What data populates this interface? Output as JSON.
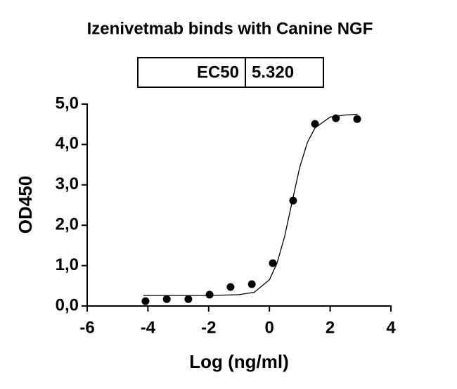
{
  "chart_data": {
    "type": "scatter",
    "title": "Izenivetmab binds with Canine NGF",
    "ec50_table": {
      "label": "EC50",
      "value": "5.320"
    },
    "x_label": "Log (ng/ml)",
    "y_label": "OD450",
    "x": [
      -4.08,
      -3.38,
      -2.67,
      -1.97,
      -1.28,
      -0.58,
      0.11,
      0.78,
      1.5,
      2.19,
      2.89
    ],
    "values": [
      0.12,
      0.17,
      0.17,
      0.28,
      0.47,
      0.54,
      1.06,
      2.61,
      4.51,
      4.65,
      4.63
    ],
    "color": "#000000",
    "curve": {
      "x": [
        -4.15,
        -3,
        -2,
        -1,
        -0.5,
        0,
        0.25,
        0.5,
        0.75,
        1,
        1.25,
        1.5,
        2,
        2.5,
        2.9
      ],
      "y": [
        0.26,
        0.26,
        0.26,
        0.28,
        0.34,
        0.65,
        1.06,
        1.72,
        2.59,
        3.44,
        4.05,
        4.41,
        4.68,
        4.73,
        4.75
      ]
    },
    "xlim": [
      -6,
      4
    ],
    "xticks": [
      -6,
      -4,
      -2,
      0,
      2,
      4
    ],
    "ylim": [
      0,
      5
    ],
    "yticks": [
      {
        "value": 0,
        "label": "0,0"
      },
      {
        "value": 1,
        "label": "1,0"
      },
      {
        "value": 2,
        "label": "2,0"
      },
      {
        "value": 3,
        "label": "3,0"
      },
      {
        "value": 4,
        "label": "4,0"
      },
      {
        "value": 5,
        "label": "5,0"
      }
    ]
  }
}
